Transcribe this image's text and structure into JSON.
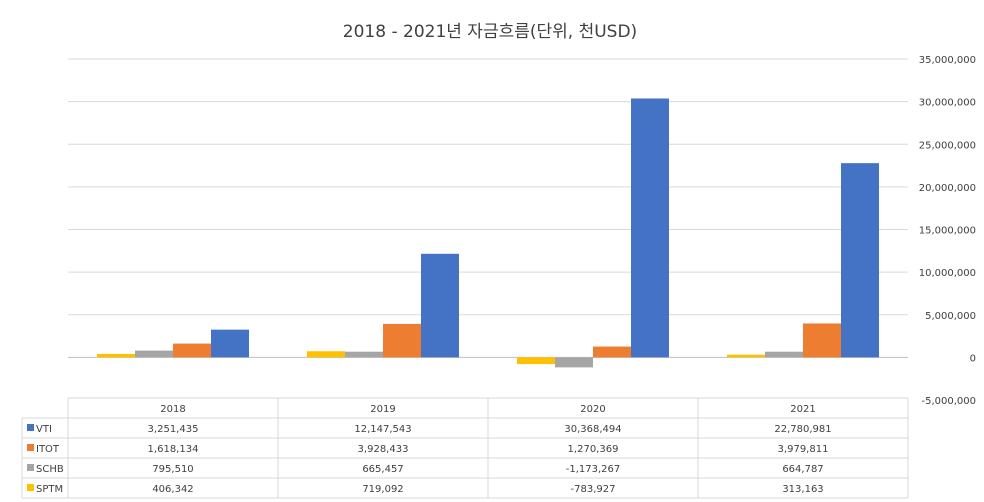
{
  "chart_data": {
    "type": "bar",
    "title": "2018 - 2021년 자금흐름(단위, 천USD)",
    "categories": [
      "2018",
      "2019",
      "2020",
      "2021"
    ],
    "series": [
      {
        "name": "VTI",
        "color": "#4472C4",
        "values": [
          3251435,
          12147543,
          30368494,
          22780981
        ],
        "labels": [
          "3,251,435",
          "12,147,543",
          "30,368,494",
          "22,780,981"
        ]
      },
      {
        "name": "ITOT",
        "color": "#ED7D31",
        "values": [
          1618134,
          3928433,
          1270369,
          3979811
        ],
        "labels": [
          "1,618,134",
          "3,928,433",
          "1,270,369",
          "3,979,811"
        ]
      },
      {
        "name": "SCHB",
        "color": "#A5A5A5",
        "values": [
          795510,
          665457,
          -1173267,
          664787
        ],
        "labels": [
          "795,510",
          "665,457",
          "-1,173,267",
          "664,787"
        ]
      },
      {
        "name": "SPTM",
        "color": "#FFC000",
        "values": [
          406342,
          719092,
          -783927,
          313163
        ],
        "labels": [
          "406,342",
          "719,092",
          "-783,927",
          "313,163"
        ]
      }
    ],
    "ylim": [
      -5000000,
      35000000
    ],
    "yticks": [
      35000000,
      30000000,
      25000000,
      20000000,
      15000000,
      10000000,
      5000000,
      0,
      -5000000
    ],
    "ytick_labels": [
      "35,000,000",
      "30,000,000",
      "25,000,000",
      "20,000,000",
      "15,000,000",
      "10,000,000",
      "5,000,000",
      "0",
      "-5,000,000"
    ],
    "bar_order": [
      "SPTM",
      "SCHB",
      "ITOT",
      "VTI"
    ],
    "y_axis_side": "right",
    "grid": true,
    "legend": "data-table-below"
  }
}
